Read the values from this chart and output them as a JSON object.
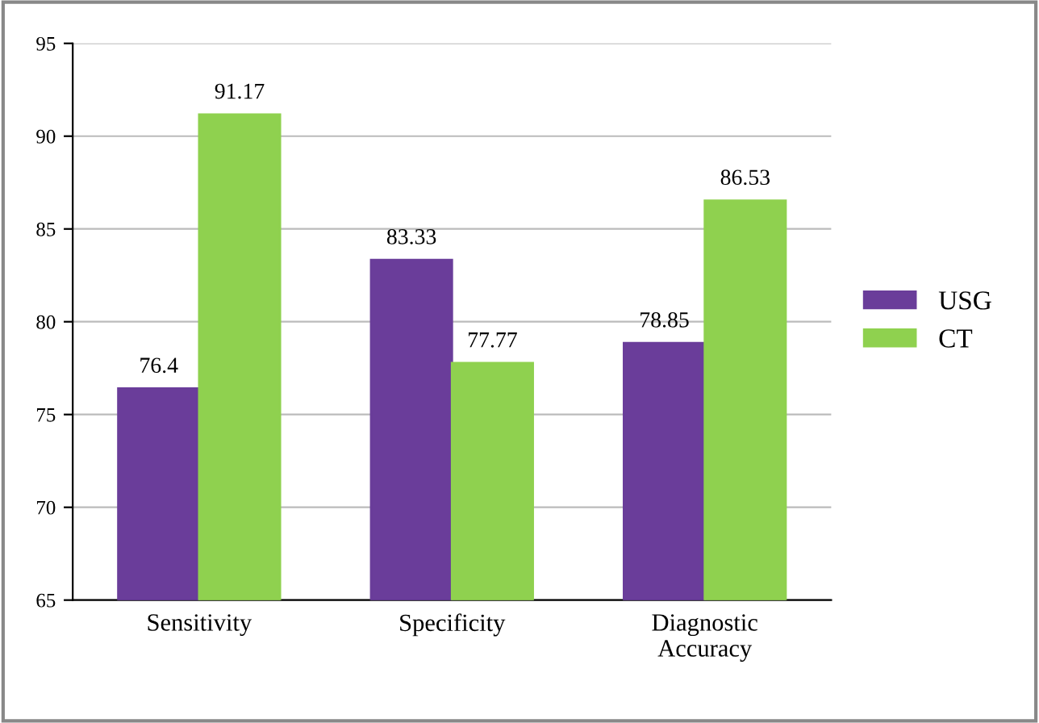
{
  "chart_data": {
    "type": "bar",
    "categories": [
      "Sensitivity",
      "Specificity",
      "Diagnostic\nAccuracy"
    ],
    "series": [
      {
        "name": "USG",
        "color": "#6a3d9a",
        "values": [
          76.4,
          83.33,
          78.85
        ]
      },
      {
        "name": "CT",
        "color": "#8fd14f",
        "values": [
          91.17,
          77.77,
          86.53
        ]
      }
    ],
    "ylim": [
      65,
      95
    ],
    "yticks": [
      65,
      70,
      75,
      80,
      85,
      90,
      95
    ],
    "grid": "y",
    "legend": "right",
    "data_labels": true
  }
}
